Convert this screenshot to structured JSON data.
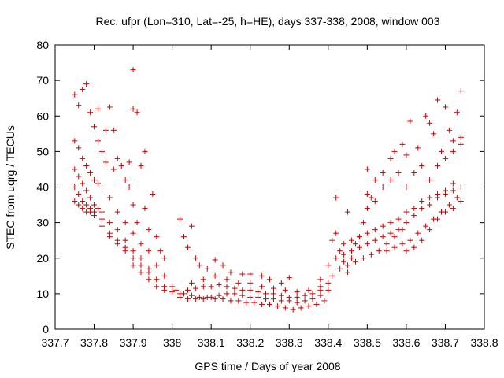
{
  "chart_data": {
    "type": "scatter",
    "title": "Rec. ufpr (Lon=310, Lat=-25, h=HE), days 337-338, 2008, window 003",
    "xlabel": "GPS time / Days of year 2008",
    "ylabel": "STEC from uqrg / TECUs",
    "xlim": [
      337.7,
      338.8
    ],
    "ylim": [
      0,
      80
    ],
    "xticks": [
      "337.7",
      "337.8",
      "337.9",
      "338",
      "338.1",
      "338.2",
      "338.3",
      "338.4",
      "338.5",
      "338.6",
      "338.7",
      "338.8"
    ],
    "yticks": [
      "0",
      "10",
      "20",
      "30",
      "40",
      "50",
      "60",
      "70",
      "80"
    ],
    "grid": false,
    "marker": "+",
    "color": "#cc0000",
    "series": [
      {
        "points": [
          [
            337.75,
            66
          ],
          [
            337.76,
            63
          ],
          [
            337.77,
            67.5
          ],
          [
            337.78,
            69
          ],
          [
            337.79,
            61
          ],
          [
            337.8,
            57
          ],
          [
            337.81,
            53
          ],
          [
            337.82,
            50
          ],
          [
            337.83,
            47
          ],
          [
            337.85,
            45
          ],
          [
            337.87,
            46
          ],
          [
            337.89,
            47
          ],
          [
            337.9,
            73
          ],
          [
            337.9,
            62
          ],
          [
            337.91,
            61
          ],
          [
            337.75,
            53
          ],
          [
            337.76,
            51
          ],
          [
            337.77,
            48
          ],
          [
            337.78,
            46
          ],
          [
            337.79,
            44
          ],
          [
            337.8,
            42
          ],
          [
            337.81,
            41
          ],
          [
            337.82,
            40
          ],
          [
            337.84,
            37
          ],
          [
            337.86,
            33
          ],
          [
            337.88,
            30
          ],
          [
            337.9,
            27
          ],
          [
            337.92,
            24
          ],
          [
            337.94,
            22
          ],
          [
            337.96,
            18
          ],
          [
            337.98,
            15
          ],
          [
            338.0,
            12
          ],
          [
            337.75,
            45
          ],
          [
            337.76,
            43
          ],
          [
            337.77,
            41
          ],
          [
            337.78,
            39
          ],
          [
            337.79,
            37
          ],
          [
            337.8,
            35
          ],
          [
            337.81,
            34
          ],
          [
            337.82,
            33
          ],
          [
            337.84,
            30
          ],
          [
            337.86,
            28
          ],
          [
            337.88,
            25
          ],
          [
            337.9,
            22
          ],
          [
            337.92,
            20
          ],
          [
            337.94,
            17
          ],
          [
            337.96,
            14
          ],
          [
            337.98,
            12
          ],
          [
            338.0,
            10.5
          ],
          [
            337.75,
            40
          ],
          [
            337.76,
            38
          ],
          [
            337.77,
            36
          ],
          [
            337.78,
            35
          ],
          [
            337.79,
            34
          ],
          [
            337.8,
            33
          ],
          [
            337.82,
            31
          ],
          [
            337.84,
            27
          ],
          [
            337.86,
            25
          ],
          [
            337.88,
            23
          ],
          [
            337.9,
            20
          ],
          [
            337.92,
            18
          ],
          [
            337.94,
            16
          ],
          [
            337.96,
            14
          ],
          [
            337.98,
            12
          ],
          [
            337.75,
            36
          ],
          [
            337.76,
            35
          ],
          [
            337.77,
            34
          ],
          [
            337.78,
            33
          ],
          [
            337.79,
            33
          ],
          [
            337.8,
            32
          ],
          [
            337.82,
            29
          ],
          [
            337.84,
            26
          ],
          [
            337.86,
            24
          ],
          [
            337.88,
            22
          ],
          [
            337.9,
            18
          ],
          [
            337.92,
            16
          ],
          [
            337.94,
            14
          ],
          [
            337.96,
            12
          ],
          [
            337.98,
            11
          ],
          [
            337.81,
            62
          ],
          [
            337.83,
            56
          ],
          [
            337.84,
            62.5
          ],
          [
            337.85,
            56
          ],
          [
            337.86,
            48
          ],
          [
            337.88,
            42
          ],
          [
            337.89,
            40
          ],
          [
            337.9,
            35
          ],
          [
            337.91,
            30
          ],
          [
            337.92,
            46
          ],
          [
            337.93,
            50
          ],
          [
            337.93,
            34
          ],
          [
            337.94,
            28
          ],
          [
            337.95,
            38
          ],
          [
            337.96,
            26
          ],
          [
            337.97,
            22
          ],
          [
            337.98,
            20
          ],
          [
            338.02,
            31
          ],
          [
            338.03,
            26
          ],
          [
            338.04,
            23
          ],
          [
            338.05,
            29
          ],
          [
            338.06,
            20
          ],
          [
            338.07,
            18
          ],
          [
            338.09,
            17
          ],
          [
            338.11,
            19.5
          ],
          [
            338.13,
            18
          ],
          [
            338.15,
            16
          ],
          [
            338.18,
            15.5
          ],
          [
            338.2,
            15.5
          ],
          [
            338.23,
            15
          ],
          [
            338.25,
            14
          ],
          [
            338.28,
            13
          ],
          [
            338.3,
            14.5
          ],
          [
            338.01,
            11
          ],
          [
            338.03,
            10
          ],
          [
            338.05,
            9.5
          ],
          [
            338.07,
            9
          ],
          [
            338.09,
            9
          ],
          [
            338.11,
            8.5
          ],
          [
            338.13,
            8.5
          ],
          [
            338.15,
            8
          ],
          [
            338.17,
            8
          ],
          [
            338.19,
            7.5
          ],
          [
            338.21,
            7.5
          ],
          [
            338.23,
            7
          ],
          [
            338.25,
            7
          ],
          [
            338.27,
            6.5
          ],
          [
            338.29,
            6
          ],
          [
            338.31,
            5.5
          ],
          [
            338.33,
            6
          ],
          [
            338.35,
            6.5
          ],
          [
            338.37,
            7
          ],
          [
            338.39,
            8
          ],
          [
            338.02,
            10
          ],
          [
            338.04,
            11
          ],
          [
            338.06,
            11.5
          ],
          [
            338.08,
            12
          ],
          [
            338.1,
            12
          ],
          [
            338.12,
            12.5
          ],
          [
            338.14,
            12
          ],
          [
            338.16,
            11.5
          ],
          [
            338.18,
            11
          ],
          [
            338.2,
            11
          ],
          [
            338.22,
            10.5
          ],
          [
            338.24,
            10
          ],
          [
            338.26,
            10
          ],
          [
            338.28,
            9.5
          ],
          [
            338.3,
            9
          ],
          [
            338.32,
            9
          ],
          [
            338.34,
            9.5
          ],
          [
            338.36,
            10
          ],
          [
            338.38,
            11
          ],
          [
            338.4,
            13
          ],
          [
            338.02,
            9
          ],
          [
            338.04,
            8.5
          ],
          [
            338.06,
            8.5
          ],
          [
            338.08,
            8.5
          ],
          [
            338.1,
            9
          ],
          [
            338.12,
            9.5
          ],
          [
            338.14,
            10
          ],
          [
            338.16,
            10
          ],
          [
            338.18,
            9.5
          ],
          [
            338.2,
            9
          ],
          [
            338.22,
            9
          ],
          [
            338.24,
            8.5
          ],
          [
            338.26,
            8.5
          ],
          [
            338.28,
            8
          ],
          [
            338.3,
            8
          ],
          [
            338.32,
            7.5
          ],
          [
            338.34,
            8
          ],
          [
            338.36,
            8.5
          ],
          [
            338.38,
            9.5
          ],
          [
            338.4,
            11
          ],
          [
            338.05,
            13
          ],
          [
            338.08,
            14
          ],
          [
            338.11,
            15
          ],
          [
            338.14,
            14
          ],
          [
            338.17,
            13
          ],
          [
            338.2,
            13
          ],
          [
            338.23,
            12
          ],
          [
            338.26,
            11.5
          ],
          [
            338.29,
            11
          ],
          [
            338.32,
            10.5
          ],
          [
            338.35,
            11
          ],
          [
            338.38,
            12
          ],
          [
            338.41,
            15
          ],
          [
            338.38,
            14
          ],
          [
            338.4,
            18
          ],
          [
            338.41,
            25
          ],
          [
            338.42,
            27
          ],
          [
            338.43,
            22
          ],
          [
            338.44,
            19
          ],
          [
            338.45,
            16
          ],
          [
            338.46,
            20
          ],
          [
            338.47,
            24
          ],
          [
            338.48,
            26
          ],
          [
            338.49,
            30
          ],
          [
            338.5,
            34
          ],
          [
            338.51,
            37
          ],
          [
            338.42,
            37
          ],
          [
            338.45,
            33
          ],
          [
            338.42,
            20
          ],
          [
            338.44,
            21
          ],
          [
            338.46,
            22
          ],
          [
            338.48,
            23
          ],
          [
            338.5,
            24
          ],
          [
            338.52,
            25
          ],
          [
            338.54,
            26
          ],
          [
            338.56,
            27
          ],
          [
            338.58,
            28
          ],
          [
            338.6,
            30
          ],
          [
            338.62,
            32
          ],
          [
            338.64,
            34
          ],
          [
            338.66,
            35
          ],
          [
            338.68,
            37
          ],
          [
            338.7,
            38
          ],
          [
            338.72,
            39
          ],
          [
            338.74,
            40
          ],
          [
            338.43,
            17
          ],
          [
            338.45,
            18
          ],
          [
            338.47,
            19
          ],
          [
            338.49,
            20
          ],
          [
            338.51,
            21
          ],
          [
            338.53,
            22
          ],
          [
            338.55,
            22
          ],
          [
            338.57,
            23
          ],
          [
            338.59,
            24
          ],
          [
            338.61,
            25
          ],
          [
            338.63,
            27
          ],
          [
            338.65,
            29
          ],
          [
            338.67,
            31
          ],
          [
            338.69,
            33
          ],
          [
            338.71,
            35
          ],
          [
            338.73,
            37
          ],
          [
            338.44,
            24
          ],
          [
            338.46,
            25
          ],
          [
            338.48,
            26
          ],
          [
            338.5,
            27
          ],
          [
            338.52,
            28
          ],
          [
            338.54,
            29
          ],
          [
            338.56,
            30
          ],
          [
            338.58,
            31
          ],
          [
            338.6,
            33
          ],
          [
            338.62,
            34
          ],
          [
            338.64,
            36
          ],
          [
            338.66,
            37
          ],
          [
            338.68,
            38
          ],
          [
            338.7,
            39
          ],
          [
            338.72,
            41
          ],
          [
            338.5,
            45
          ],
          [
            338.52,
            42
          ],
          [
            338.54,
            44
          ],
          [
            338.56,
            48
          ],
          [
            338.57,
            50
          ],
          [
            338.59,
            52
          ],
          [
            338.6,
            49
          ],
          [
            338.61,
            58.5
          ],
          [
            338.63,
            51
          ],
          [
            338.65,
            60
          ],
          [
            338.66,
            58
          ],
          [
            338.67,
            55
          ],
          [
            338.68,
            64.5
          ],
          [
            338.69,
            50
          ],
          [
            338.7,
            62.5
          ],
          [
            338.71,
            56
          ],
          [
            338.72,
            53
          ],
          [
            338.73,
            61
          ],
          [
            338.74,
            67
          ],
          [
            338.74,
            54
          ],
          [
            338.5,
            38
          ],
          [
            338.52,
            36
          ],
          [
            338.54,
            40
          ],
          [
            338.56,
            42
          ],
          [
            338.58,
            44
          ],
          [
            338.6,
            40
          ],
          [
            338.62,
            44
          ],
          [
            338.64,
            46
          ],
          [
            338.66,
            42
          ],
          [
            338.68,
            46
          ],
          [
            338.7,
            48
          ],
          [
            338.72,
            50
          ],
          [
            338.74,
            52
          ],
          [
            338.6,
            22
          ],
          [
            338.62,
            23
          ],
          [
            338.64,
            25
          ],
          [
            338.66,
            28
          ],
          [
            338.68,
            31
          ],
          [
            338.7,
            33
          ],
          [
            338.72,
            34
          ],
          [
            338.74,
            36
          ],
          [
            338.55,
            24
          ],
          [
            338.57,
            26
          ],
          [
            338.59,
            28
          ]
        ]
      }
    ]
  }
}
